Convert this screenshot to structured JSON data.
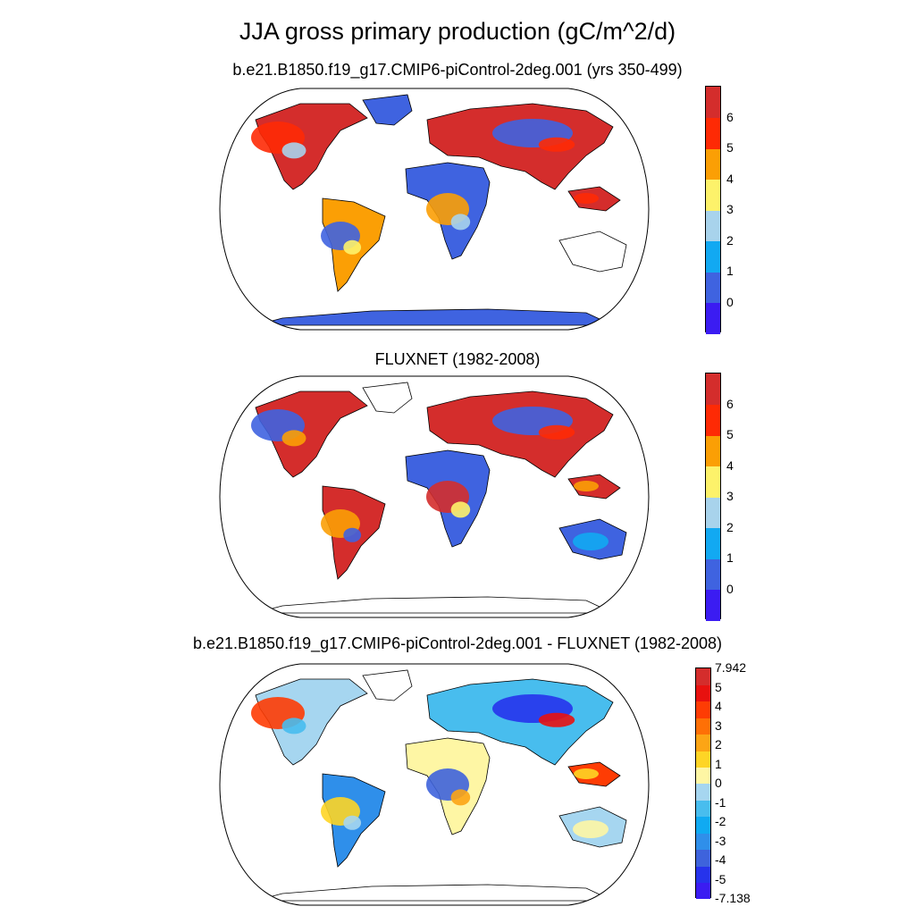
{
  "title": "JJA gross primary production (gC/m^2/d)",
  "panels": [
    {
      "id": "model",
      "title": "b.e21.B1850.f19_g17.CMIP6-piControl-2deg.001 (yrs 350-499)",
      "colorbar": {
        "colors": [
          "#3b1cf2",
          "#3f63e0",
          "#12a9f2",
          "#a8d3ec",
          "#fdf26a",
          "#fb9f05",
          "#fe2a05",
          "#d42d2c"
        ],
        "labels": [
          "0",
          "1",
          "2",
          "3",
          "4",
          "5",
          "6"
        ]
      }
    },
    {
      "id": "obs",
      "title": "FLUXNET (1982-2008)",
      "colorbar": {
        "colors": [
          "#3b1cf2",
          "#3f63e0",
          "#12a9f2",
          "#a8d3ec",
          "#fdf26a",
          "#fb9f05",
          "#fe2a05",
          "#d42d2c"
        ],
        "labels": [
          "0",
          "1",
          "2",
          "3",
          "4",
          "5",
          "6"
        ]
      }
    },
    {
      "id": "diff",
      "title": "b.e21.B1850.f19_g17.CMIP6-piControl-2deg.001 - FLUXNET (1982-2008)",
      "colorbar": {
        "colors": [
          "#3b1cf2",
          "#2633ec",
          "#3e63dc",
          "#2f8fea",
          "#10aaf2",
          "#48bdee",
          "#a6d6f0",
          "#fef6a4",
          "#fed525",
          "#fca515",
          "#fe7006",
          "#fe3c04",
          "#e8110f",
          "#d42d2c"
        ],
        "labels": [
          "-7.138",
          "-5",
          "-4",
          "-3",
          "-2",
          "-1",
          "0",
          "1",
          "2",
          "3",
          "4",
          "5",
          "7.942"
        ]
      }
    }
  ]
}
